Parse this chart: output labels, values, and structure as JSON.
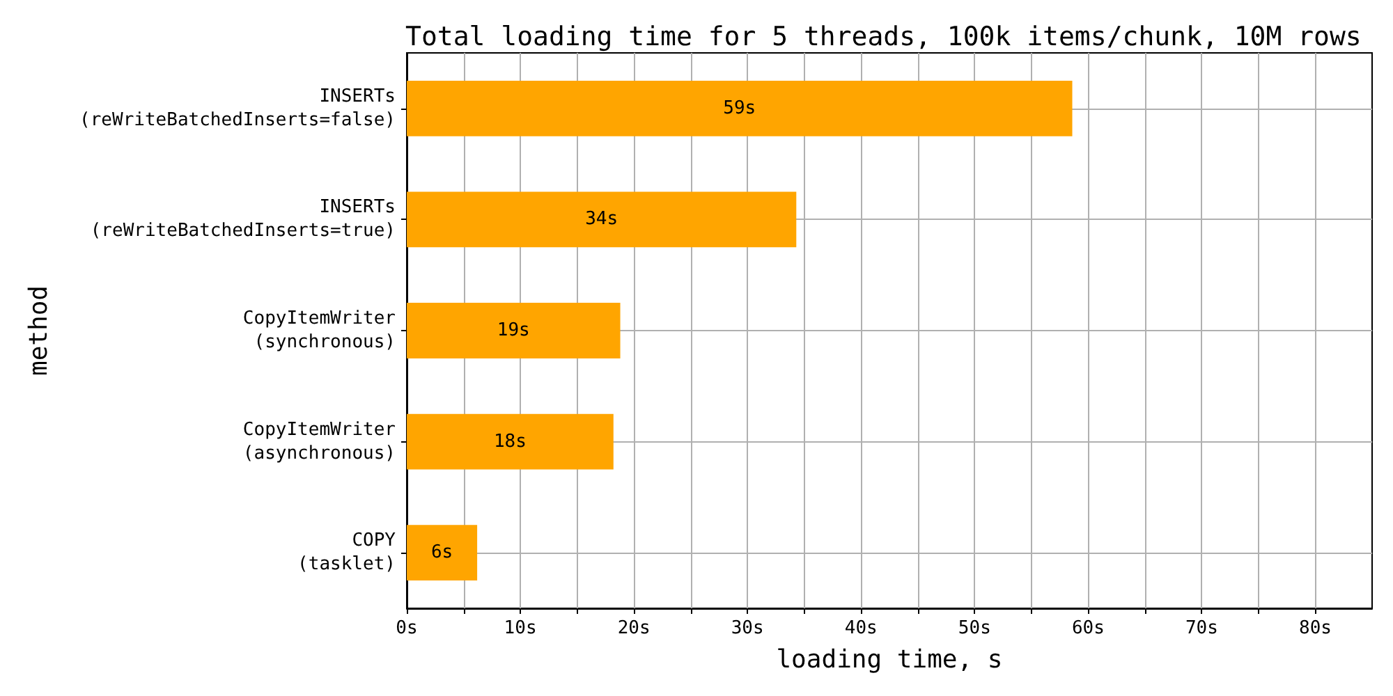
{
  "chart_data": {
    "type": "bar",
    "orientation": "horizontal",
    "title": "Total loading time for 5 threads, 100k items/chunk, 10M rows",
    "xlabel": "loading time, s",
    "ylabel": "method",
    "categories": [
      "INSERTs\n(reWriteBatchedInserts=false)",
      "INSERTs\n(reWriteBatchedInserts=true)",
      "CopyItemWriter\n(synchronous)",
      "CopyItemWriter\n(asynchronous)",
      "COPY\n(tasklet)"
    ],
    "values": [
      58.6,
      34.3,
      18.8,
      18.2,
      6.2
    ],
    "value_labels": [
      "59s",
      "34s",
      "19s",
      "18s",
      "6s"
    ],
    "color": "#ffa500",
    "xlim": [
      0,
      85
    ],
    "xticks": [
      {
        "value": 0,
        "label": "0s"
      },
      {
        "value": 5,
        "label": null
      },
      {
        "value": 10,
        "label": "10s"
      },
      {
        "value": 15,
        "label": null
      },
      {
        "value": 20,
        "label": "20s"
      },
      {
        "value": 25,
        "label": null
      },
      {
        "value": 30,
        "label": "30s"
      },
      {
        "value": 35,
        "label": null
      },
      {
        "value": 40,
        "label": "40s"
      },
      {
        "value": 45,
        "label": null
      },
      {
        "value": 50,
        "label": "50s"
      },
      {
        "value": 55,
        "label": null
      },
      {
        "value": 60,
        "label": "60s"
      },
      {
        "value": 65,
        "label": null
      },
      {
        "value": 70,
        "label": "70s"
      },
      {
        "value": 75,
        "label": null
      },
      {
        "value": 80,
        "label": "80s"
      }
    ],
    "grid": true
  }
}
